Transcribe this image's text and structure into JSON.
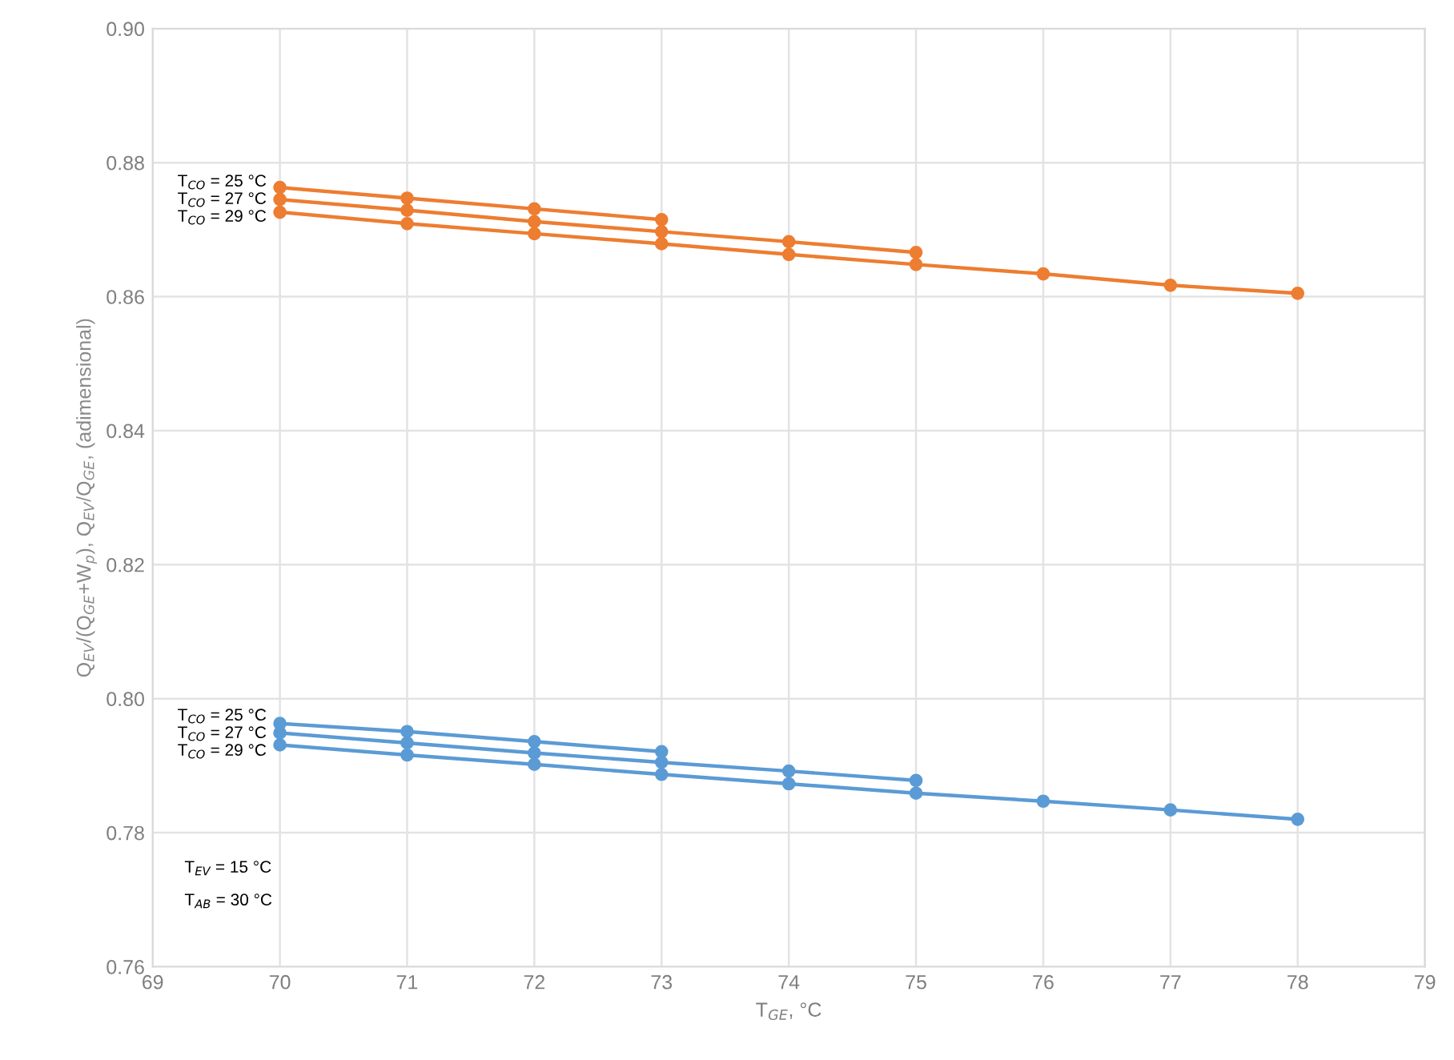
{
  "chart_data": {
    "type": "line",
    "xlabel": "T$_{GE}$, °C",
    "ylabel": "Q$_{EV}$/(Q$_{GE}$+W$_{p}$), Q$_{EV}$/Q$_{GE}$, (adimensional)",
    "series": [
      {
        "name": "T$_{CO}$ = 25 °C",
        "color": "#ed7d31",
        "x": [
          70,
          71,
          72,
          73
        ],
        "values": [
          0.8763,
          0.8747,
          0.8731,
          0.8715
        ]
      },
      {
        "name": "T$_{CO}$ = 27 °C",
        "color": "#ed7d31",
        "x": [
          70,
          71,
          72,
          73,
          74,
          75
        ],
        "values": [
          0.8745,
          0.8729,
          0.8712,
          0.8697,
          0.8682,
          0.8666
        ]
      },
      {
        "name": "T$_{CO}$ = 29 °C",
        "color": "#ed7d31",
        "x": [
          70,
          71,
          72,
          73,
          74,
          75,
          76,
          77,
          78
        ],
        "values": [
          0.8726,
          0.8709,
          0.8694,
          0.8679,
          0.8663,
          0.8648,
          0.8634,
          0.8617,
          0.8605
        ]
      },
      {
        "name": "T$_{CO}$ = 25 °C",
        "color": "#5b9bd5",
        "x": [
          70,
          71,
          72,
          73
        ],
        "values": [
          0.7963,
          0.7951,
          0.7936,
          0.7921
        ]
      },
      {
        "name": "T$_{CO}$ = 27 °C",
        "color": "#5b9bd5",
        "x": [
          70,
          71,
          72,
          73,
          74,
          75
        ],
        "values": [
          0.7949,
          0.7934,
          0.7919,
          0.7905,
          0.7892,
          0.7878
        ]
      },
      {
        "name": "T$_{CO}$ = 29 °C",
        "color": "#5b9bd5",
        "x": [
          70,
          71,
          72,
          73,
          74,
          75,
          76,
          77,
          78
        ],
        "values": [
          0.7931,
          0.7916,
          0.7902,
          0.7887,
          0.7873,
          0.7859,
          0.7847,
          0.7834,
          0.782
        ]
      }
    ],
    "annotations": [
      "T$_{EV}$ = 15 °C",
      "T$_{AB}$ = 30 °C"
    ],
    "xlim": [
      69,
      79
    ],
    "xticks": [
      69,
      70,
      71,
      72,
      73,
      74,
      75,
      76,
      77,
      78,
      79
    ],
    "ylim": [
      0.76,
      0.9
    ],
    "yticks": [
      {
        "value": 0.76,
        "label": "0.76"
      },
      {
        "value": 0.78,
        "label": "0.78"
      },
      {
        "value": 0.8,
        "label": "0.80"
      },
      {
        "value": 0.82,
        "label": "0.82"
      },
      {
        "value": 0.84,
        "label": "0.84"
      },
      {
        "value": 0.86,
        "label": "0.86"
      },
      {
        "value": 0.88,
        "label": "0.88"
      },
      {
        "value": 0.9,
        "label": "0.90"
      }
    ],
    "grid": true,
    "marker": "circle",
    "line_style": "solid"
  }
}
